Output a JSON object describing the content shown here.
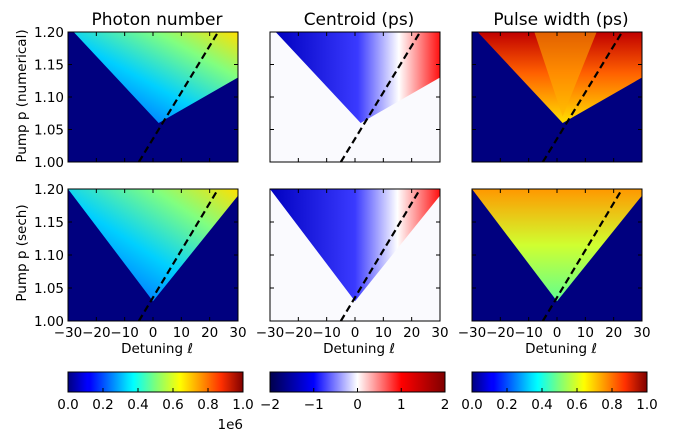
{
  "column_titles": [
    "Photon number",
    "Centroid (ps)",
    "Pulse width (ps)"
  ],
  "row_ylabels": [
    "Pump p (numerical)",
    "Pump p (sech)"
  ],
  "xlabel": "Detuning ℓ",
  "xticks": [
    -30,
    -20,
    -10,
    0,
    10,
    20,
    30
  ],
  "yticks": [
    1.0,
    1.05,
    1.1,
    1.15,
    1.2
  ],
  "xlim": [
    -30,
    30
  ],
  "ylim": [
    1.0,
    1.2
  ],
  "colorbars": [
    {
      "ticks": [
        "0.0",
        "0.2",
        "0.4",
        "0.6",
        "0.8",
        "1.0"
      ],
      "range": [
        0,
        1000000
      ],
      "offset_label": "1e6",
      "colormap": "jet"
    },
    {
      "ticks": [
        "−2",
        "−1",
        "0",
        "1",
        "2"
      ],
      "range": [
        -2,
        2
      ],
      "offset_label": "",
      "colormap": "seismic"
    },
    {
      "ticks": [
        "0.0",
        "0.2",
        "0.4",
        "0.6",
        "0.8",
        "1.0"
      ],
      "range": [
        0,
        1
      ],
      "offset_label": "",
      "colormap": "jet"
    }
  ],
  "chart_data": {
    "type": "heatmap",
    "rows": [
      "numerical",
      "sech"
    ],
    "columns": [
      "Photon number",
      "Centroid (ps)",
      "Pulse width (ps)"
    ],
    "dashed_line": {
      "style": "black dashed",
      "points": [
        [
          -5,
          1.0
        ],
        [
          23,
          1.2
        ]
      ]
    },
    "numerical_region_apex": {
      "detuning": 2,
      "pump": 1.06
    },
    "sech_region_apex": {
      "detuning": 0,
      "pump": 1.03
    },
    "colors": {
      "background_low": "#00007f",
      "dashed": "#000000"
    }
  }
}
